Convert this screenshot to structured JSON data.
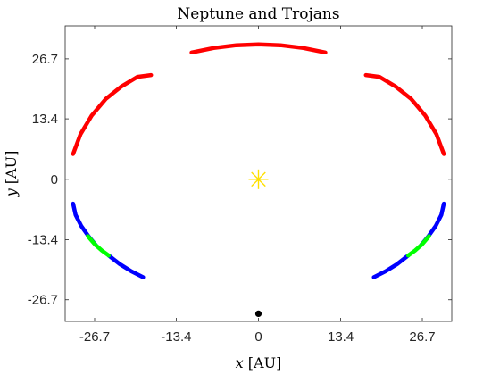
{
  "chart_data": {
    "type": "scatter",
    "title": "Neptune and Trojans",
    "xlabel_var": "x",
    "xlabel_unit": "[AU]",
    "ylabel_var": "y",
    "ylabel_unit": "[AU]",
    "xlim": [
      -31.5,
      31.5
    ],
    "ylim": [
      -31.5,
      34.0
    ],
    "xticks": [
      -26.7,
      -13.4,
      0,
      13.4,
      26.7
    ],
    "xtick_labels": [
      "-26.7",
      "-13.4",
      "0",
      "13.4",
      "26.7"
    ],
    "yticks": [
      -26.7,
      -13.4,
      0,
      13.4,
      26.7
    ],
    "ytick_labels": [
      "-26.7",
      "-13.4",
      "0",
      "13.4",
      "26.7"
    ],
    "grid": false,
    "box": true,
    "sun": {
      "label": "Sun",
      "x": 0.0,
      "y": 0.0,
      "color": "#FFE000",
      "marker": "asterisk"
    },
    "neptune": {
      "label": "Neptune",
      "x": 0.0,
      "y": -29.8,
      "color": "#000000",
      "marker": "dot"
    },
    "arcs": [
      {
        "group": "red",
        "color": "#FF0000",
        "x": [
          -10.9,
          -7.3,
          -3.6,
          0.0,
          3.6,
          7.3,
          10.9
        ],
        "y": [
          28.1,
          29.1,
          29.7,
          29.9,
          29.7,
          29.1,
          28.1
        ]
      },
      {
        "group": "red",
        "color": "#FF0000",
        "x": [
          -30.2,
          -29.0,
          -27.2,
          -24.9,
          -22.4,
          -19.7,
          -17.5
        ],
        "y": [
          5.6,
          10.0,
          14.1,
          17.8,
          20.5,
          22.7,
          23.1
        ]
      },
      {
        "group": "red",
        "color": "#FF0000",
        "x": [
          17.5,
          19.7,
          22.4,
          24.9,
          27.2,
          29.0,
          30.2
        ],
        "y": [
          23.1,
          22.7,
          20.5,
          17.8,
          14.1,
          10.0,
          5.6
        ]
      },
      {
        "group": "blue",
        "color": "#0000FF",
        "x": [
          -30.2,
          -29.8,
          -28.9,
          -27.7,
          -26.5
        ],
        "y": [
          -5.4,
          -7.9,
          -10.3,
          -12.6,
          -14.6
        ]
      },
      {
        "group": "blue",
        "color": "#0000FF",
        "x": [
          -24.4,
          -22.6,
          -20.7,
          -18.8
        ],
        "y": [
          -16.9,
          -18.8,
          -20.4,
          -21.7
        ]
      },
      {
        "group": "blue",
        "color": "#0000FF",
        "x": [
          18.8,
          20.7,
          22.6,
          24.4
        ],
        "y": [
          -21.7,
          -20.4,
          -18.8,
          -16.9
        ]
      },
      {
        "group": "blue",
        "color": "#0000FF",
        "x": [
          26.5,
          27.7,
          28.9,
          29.8,
          30.2
        ],
        "y": [
          -14.6,
          -12.6,
          -10.3,
          -7.9,
          -5.4
        ]
      },
      {
        "group": "green",
        "color": "#00FF00",
        "x": [
          -27.8,
          -26.6,
          -25.5,
          -24.4
        ],
        "y": [
          -12.6,
          -14.5,
          -15.8,
          -16.9
        ]
      },
      {
        "group": "green",
        "color": "#00FF00",
        "x": [
          24.4,
          25.5,
          26.6,
          27.8
        ],
        "y": [
          -16.9,
          -15.8,
          -14.5,
          -12.6
        ]
      }
    ]
  }
}
